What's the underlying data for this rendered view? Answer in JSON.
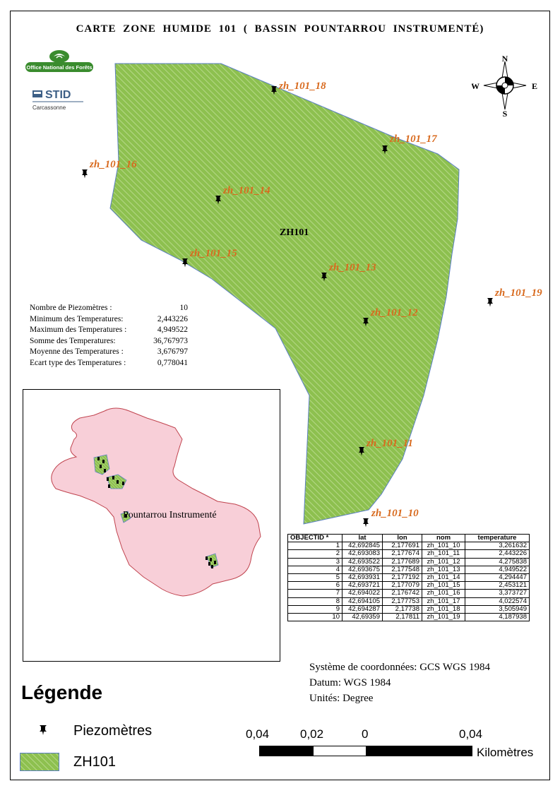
{
  "title": "CARTE  ZONE  HUMIDE 101  ( BASSIN  POUNTARROU  INSTRUMENTÉ)",
  "logos": {
    "onf_text": "Office National des Forêts",
    "stid_text": "STID",
    "stid_sub": "Carcassonne"
  },
  "compass": {
    "n": "N",
    "s": "S",
    "e": "E",
    "w": "W"
  },
  "zone_label": "ZH101",
  "piezometers": [
    {
      "name": "zh_101_18"
    },
    {
      "name": "zh_101_17"
    },
    {
      "name": "zh_101_16"
    },
    {
      "name": "zh_101_14"
    },
    {
      "name": "zh_101_15"
    },
    {
      "name": "zh_101_13"
    },
    {
      "name": "zh_101_19"
    },
    {
      "name": "zh_101_12"
    },
    {
      "name": "zh_101_11"
    },
    {
      "name": "zh_101_10"
    }
  ],
  "stats": [
    {
      "label": "Nombre    de    Piezomètres     :",
      "value": "10"
    },
    {
      "label": "Minimum des  Temperatures:",
      "value": "2,443226"
    },
    {
      "label": "Maximum des Temperatures :",
      "value": "4,949522"
    },
    {
      "label": "Somme  des   Temperatures:",
      "value": "36,767973"
    },
    {
      "label": "Moyenne   des  Temperatures :",
      "value": "3,676797"
    },
    {
      "label": "Ecart type  des Temperatures :",
      "value": "0,778041"
    }
  ],
  "inset": {
    "label": "Pountarrou Instrumenté"
  },
  "table": {
    "headers": [
      "OBJECTID *",
      "lat",
      "lon",
      "nom",
      "temperature"
    ],
    "rows": [
      [
        "1",
        "42,692845",
        "2,177691",
        "zh_101_10",
        "3,261632"
      ],
      [
        "2",
        "42,693083",
        "2,177674",
        "zh_101_11",
        "2,443226"
      ],
      [
        "3",
        "42,693522",
        "2,177689",
        "zh_101_12",
        "4,275838"
      ],
      [
        "4",
        "42,693675",
        "2,177548",
        "zh_101_13",
        "4,949522"
      ],
      [
        "5",
        "42,693931",
        "2,177192",
        "zh_101_14",
        "4,294447"
      ],
      [
        "6",
        "42,693721",
        "2,177079",
        "zh_101_15",
        "2,453121"
      ],
      [
        "7",
        "42,694022",
        "2,176742",
        "zh_101_16",
        "3,373727"
      ],
      [
        "8",
        "42,694105",
        "2,177753",
        "zh_101_17",
        "4,022574"
      ],
      [
        "9",
        "42,694287",
        "2,17738",
        "zh_101_18",
        "3,505949"
      ],
      [
        "10",
        "42,69359",
        "2,17811",
        "zh_101_19",
        "4,187938"
      ]
    ]
  },
  "coord_system": {
    "system": "Système de coordonnées: GCS WGS 1984",
    "datum": "Datum:  WGS 1984",
    "units": "Unités:  Degree"
  },
  "legend": {
    "title": "Légende",
    "items": [
      {
        "label": "Piezomètres",
        "icon": "pushpin-icon"
      },
      {
        "label": "ZH101",
        "icon": "hatched-polygon-icon"
      }
    ]
  },
  "scale_bar": {
    "labels": [
      "0,04",
      "0,02",
      "0",
      "0,04"
    ],
    "unit": "Kilomètres"
  },
  "colors": {
    "zone_fill": "#8dc04f",
    "zone_hatch": "#b7d98a",
    "zone_outline": "#5b7fc4",
    "label_orange": "#d86a1e",
    "inset_fill": "#f8cfd8",
    "inset_outline": "#c0444f"
  }
}
